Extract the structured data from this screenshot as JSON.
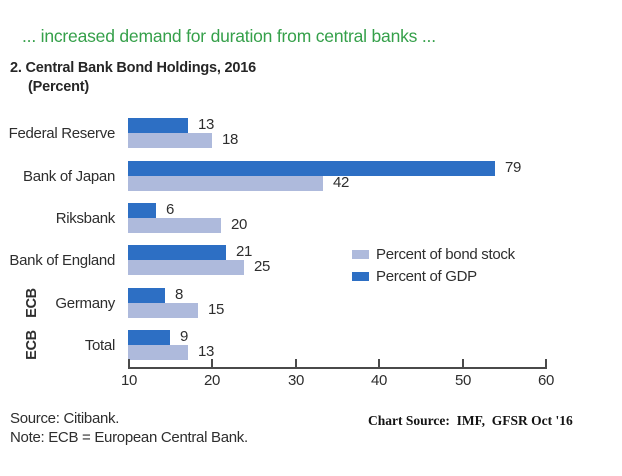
{
  "header": {
    "kicker": "... increased demand for duration from central banks ...",
    "title_line1": "2. Central Bank Bond Holdings, 2016",
    "title_line2": "(Percent)"
  },
  "chart_data": {
    "type": "bar",
    "orientation": "horizontal",
    "title": "Central Bank Bond Holdings, 2016",
    "unit": "Percent",
    "categories": [
      "Federal Reserve",
      "Bank of Japan",
      "Riksbank",
      "Bank of England",
      "Germany",
      "Total"
    ],
    "group_labels": [
      "",
      "",
      "",
      "",
      "ECB",
      "ECB"
    ],
    "series": [
      {
        "name": "Percent of GDP",
        "color": "#2d6fc4",
        "values": [
          13,
          79,
          6,
          21,
          8,
          9
        ]
      },
      {
        "name": "Percent of bond stock",
        "color": "#aebadc",
        "values": [
          18,
          42,
          20,
          25,
          15,
          13
        ]
      }
    ],
    "x_ticks": [
      "10",
      "20",
      "30",
      "40",
      "50",
      "60"
    ],
    "grid": false,
    "legend_position": "right-middle",
    "legend": {
      "items": [
        {
          "label": "Percent of bond stock",
          "color": "#aebadc"
        },
        {
          "label": "Percent of GDP",
          "color": "#2d6fc4"
        }
      ]
    }
  },
  "colors": {
    "kicker_green": "#35a04a",
    "bar_dark_blue": "#2d6fc4",
    "bar_light_blue": "#aebadc",
    "axis": "#4a4a4a",
    "text": "#2e2e2e"
  },
  "footer": {
    "source": "Source: Citibank.",
    "note": "Note: ECB = European Central Bank.",
    "chart_source_label": "Chart Source:",
    "chart_source_value": "IMF,  GFSR Oct '16"
  }
}
